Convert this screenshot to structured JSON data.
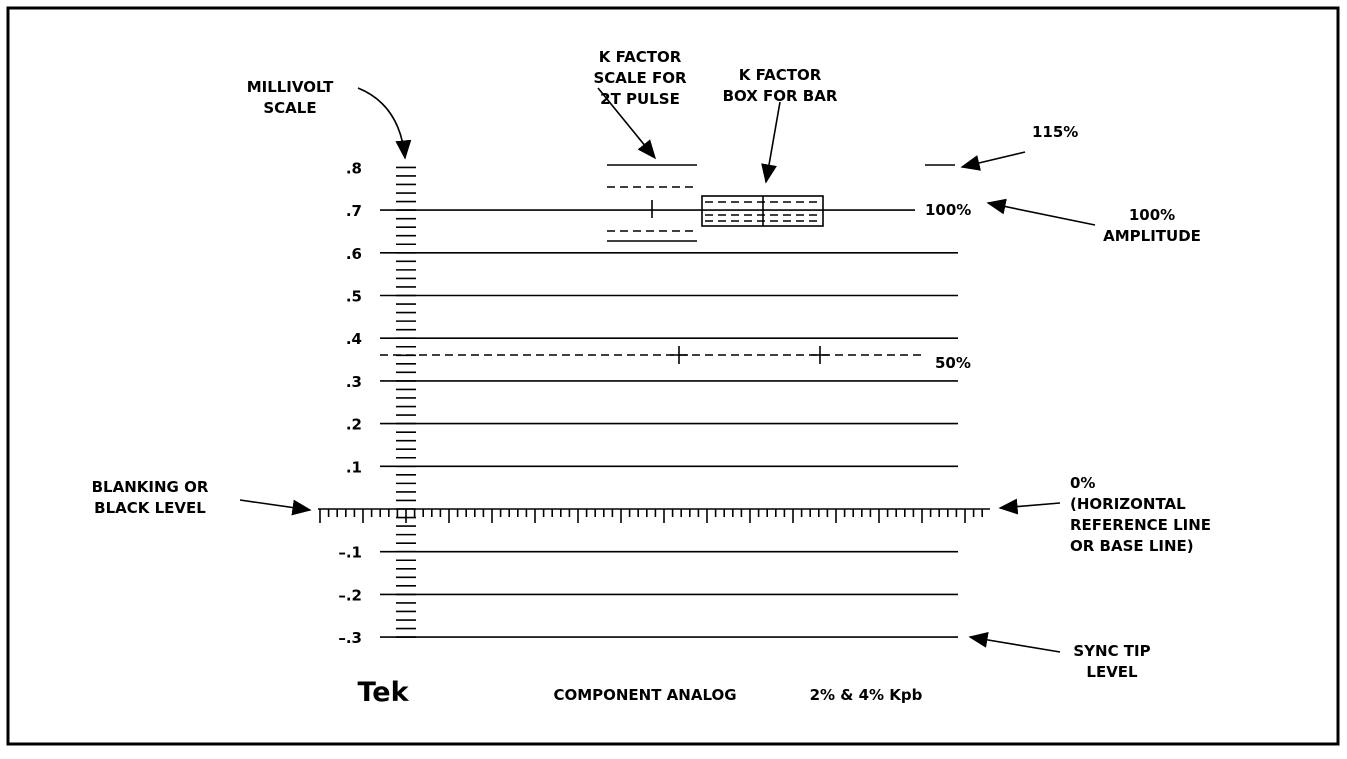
{
  "scale_labels": [
    ".8",
    ".7",
    ".6",
    ".5",
    ".4",
    ".3",
    ".2",
    ".1",
    "–.1",
    "–.2",
    "–.3"
  ],
  "annotations": {
    "millivolt_scale": [
      "MILLIVOLT",
      "SCALE"
    ],
    "k_factor_scale": [
      "K FACTOR",
      "SCALE FOR",
      "2T PULSE"
    ],
    "k_factor_box": [
      "K FACTOR",
      "BOX FOR BAR"
    ],
    "p115": "115%",
    "p100": "100%",
    "amplitude": [
      "100%",
      "AMPLITUDE"
    ],
    "p50": "50%",
    "blanking": [
      "BLANKING OR",
      "BLACK LEVEL"
    ],
    "zero": [
      "0%",
      "(HORIZONTAL",
      "REFERENCE LINE",
      "OR BASE LINE)"
    ],
    "sync": [
      "SYNC TIP",
      "LEVEL"
    ]
  },
  "footer": {
    "brand": "Tek",
    "name": "COMPONENT ANALOG",
    "kfactor": "2% & 4% Kpb"
  }
}
